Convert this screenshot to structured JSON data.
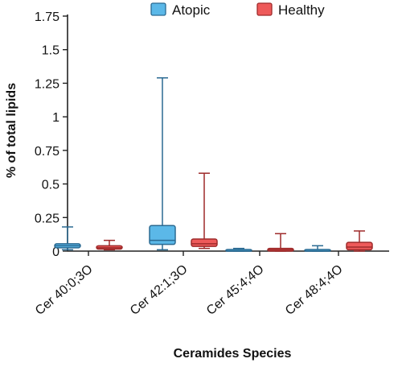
{
  "chart_data": {
    "type": "box",
    "title": "",
    "xlabel": "Ceramides Species",
    "ylabel": "% of total lipids",
    "ylim": [
      0,
      1.75
    ],
    "yticks": [
      0,
      0.25,
      0.5,
      0.75,
      1,
      1.25,
      1.5,
      1.75
    ],
    "ytick_labels": [
      "0",
      "0.25",
      "0.5",
      "0.75",
      "1",
      "1.25",
      "1.5",
      "1.75"
    ],
    "categories": [
      "Cer 40:0;3O",
      "Cer 42:1;3O",
      "Cer 45:4;4O",
      "Cer 48:4;4O"
    ],
    "legend_position": "top",
    "grid": false,
    "series": [
      {
        "name": "Atopic",
        "fill": "#5BB8E8",
        "edge": "#2A6A92",
        "boxes": [
          {
            "min": 0.01,
            "q1": 0.025,
            "median": 0.04,
            "q3": 0.055,
            "max": 0.18
          },
          {
            "min": 0.01,
            "q1": 0.05,
            "median": 0.08,
            "q3": 0.19,
            "max": 1.29
          },
          {
            "min": 0.0,
            "q1": 0.0,
            "median": 0.0,
            "q3": 0.005,
            "max": 0.02
          },
          {
            "min": 0.0,
            "q1": 0.0,
            "median": 0.0,
            "q3": 0.005,
            "max": 0.04
          }
        ]
      },
      {
        "name": "Healthy",
        "fill": "#EE5A5A",
        "edge": "#9E2A2A",
        "boxes": [
          {
            "min": 0.01,
            "q1": 0.015,
            "median": 0.025,
            "q3": 0.04,
            "max": 0.08
          },
          {
            "min": 0.02,
            "q1": 0.035,
            "median": 0.055,
            "q3": 0.09,
            "max": 0.58
          },
          {
            "min": 0.0,
            "q1": 0.0,
            "median": 0.01,
            "q3": 0.02,
            "max": 0.13
          },
          {
            "min": 0.0,
            "q1": 0.01,
            "median": 0.03,
            "q3": 0.065,
            "max": 0.15
          }
        ]
      }
    ]
  }
}
